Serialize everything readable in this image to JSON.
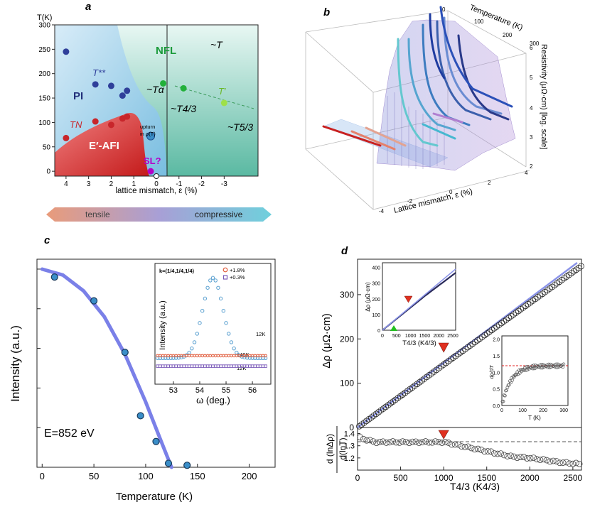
{
  "panel_labels": {
    "a": "a",
    "b": "b",
    "c": "c",
    "d": "d"
  },
  "colors": {
    "panel_a_blue": "#2f3f9a",
    "panel_a_red": "#c8262b",
    "panel_a_green": "#1a9a3a",
    "sl_purple": "#b400c8",
    "dashed_green": "#3a9a5a",
    "fit_line": "#7a80e8",
    "arrow_red": "#e03020",
    "point_blue": "#3a8ec8"
  },
  "panel_a": {
    "ylabel": "T(K)",
    "xlabel": "lattice mismatch, ε (%)",
    "region_labels": {
      "nfl": "NFL",
      "pi": "PI",
      "afi": "E′-AFI",
      "sl": "SL?",
      "tstarstar": "T**",
      "tn": "TN",
      "tprime": "T′",
      "upturn1": "upturn",
      "upturn2": "in ρ(T)"
    },
    "power_laws": {
      "t": "~T",
      "talpha": "~Tα",
      "t43": "~T4/3",
      "t53": "~T5/3"
    },
    "strain_bar": {
      "tensile": "tensile",
      "compressive": "compressive"
    },
    "chart_data": {
      "type": "scatter",
      "title": "",
      "xlabel": "lattice mismatch, ε (%)",
      "ylabel": "T(K)",
      "xlim": [
        4.5,
        -4.5
      ],
      "ylim": [
        -10,
        300
      ],
      "xticks": [
        "4",
        "3",
        "2",
        "1",
        "0",
        "-1",
        "-2",
        "-3"
      ],
      "yticks": [
        "0",
        "50",
        "100",
        "150",
        "200",
        "250",
        "300"
      ],
      "series": [
        {
          "name": "T**",
          "color": "#2f3f9a",
          "points": [
            [
              4.0,
              245
            ],
            [
              2.7,
              178
            ],
            [
              2.0,
              175
            ],
            [
              1.5,
              155
            ],
            [
              1.3,
              165
            ]
          ]
        },
        {
          "name": "TN",
          "color": "#c8262b",
          "points": [
            [
              4.0,
              68
            ],
            [
              2.7,
              102
            ],
            [
              2.0,
              95
            ],
            [
              1.5,
              108
            ],
            [
              1.3,
              112
            ]
          ]
        },
        {
          "name": "T′",
          "color": "#1a9a3a",
          "points": [
            [
              -0.3,
              180
            ],
            [
              -1.2,
              170
            ],
            [
              -3.0,
              140
            ]
          ]
        },
        {
          "name": "upturn",
          "color": "#3a8ec8",
          "points": [
            [
              0.25,
              72
            ]
          ]
        },
        {
          "name": "SL",
          "color": "#b400c8",
          "points": [
            [
              0.25,
              0
            ]
          ]
        }
      ]
    }
  },
  "panel_b": {
    "zlabel": "Resistivity (μΩ·cm) [log. scale]",
    "temp_label": "Temperature (K)",
    "mismatch_label": "Lattice mismatch, ε (%)",
    "chart_data": {
      "type": "surface3d",
      "temp_axis": {
        "label": "Temperature (K)",
        "ticks": [
          "0",
          "100",
          "200",
          "300"
        ]
      },
      "mismatch_axis": {
        "label": "Lattice mismatch, ε (%)",
        "ticks": [
          "-4",
          "-2",
          "0",
          "2",
          "4"
        ]
      },
      "resistivity_axis": {
        "label": "Resistivity (μΩ·cm) [log. scale]",
        "ticks": [
          "2",
          "3",
          "4",
          "5",
          "6"
        ]
      }
    }
  },
  "panel_c": {
    "ylabel": "Intensity (a.u.)",
    "xlabel": "Temperature (K)",
    "energy_label": "E=852 eV",
    "chart_data": {
      "type": "scatter",
      "title": "",
      "xlabel": "Temperature (K)",
      "ylabel": "Intensity (a.u.)",
      "xlim": [
        -5,
        225
      ],
      "ylim": [
        0,
        1.05
      ],
      "xticks": [
        "0",
        "50",
        "100",
        "150",
        "200"
      ],
      "series": [
        {
          "name": "data",
          "x": [
            12,
            50,
            80,
            95,
            110,
            122,
            140
          ],
          "y": [
            0.96,
            0.84,
            0.58,
            0.26,
            0.13,
            0.02,
            0.01
          ]
        }
      ],
      "fit": {
        "x": [
          0,
          20,
          40,
          60,
          80,
          100,
          115,
          125
        ],
        "y": [
          1.0,
          0.97,
          0.89,
          0.76,
          0.57,
          0.33,
          0.13,
          0.0
        ]
      }
    },
    "inset": {
      "kvector": "k=(1/4,1/4,1/4)",
      "legend": [
        "+1.8%",
        "+0.3%"
      ],
      "ylabel": "Intensity (a.u.)",
      "xlabel": "ω (deg.)",
      "curve_labels": [
        "12K",
        "140K",
        "12K"
      ],
      "chart_data": {
        "type": "scatter",
        "xlim": [
          52.3,
          56.7
        ],
        "xticks": [
          "53",
          "54",
          "55",
          "56"
        ],
        "series": [
          {
            "name": "+1.8% 12K",
            "peak_center": 54.5,
            "peak_height": 1.0,
            "peak_width": 0.55
          },
          {
            "name": "+1.8% 140K",
            "level": 0.06
          },
          {
            "name": "+0.3% 12K",
            "level": -0.07
          }
        ]
      }
    }
  },
  "panel_d": {
    "ylabel_top": "Δρ (μΩ·cm)",
    "ylabel_bottom_num": "d (lnΔρ)",
    "ylabel_bottom_den": "d(lnT)",
    "xlabel": "T4/3 (K4/3)",
    "chart_data": {
      "type": "scatter",
      "xlabel": "T4/3 (K4/3)",
      "ylabel": "Δρ (μΩ·cm)",
      "xlim": [
        0,
        2600
      ],
      "ylim": [
        0,
        380
      ],
      "xticks": [
        "0",
        "500",
        "1000",
        "1500",
        "2000",
        "2500"
      ],
      "yticks": [
        "0",
        "100",
        "200",
        "300"
      ],
      "data_slope": 0.142,
      "fit_line": [
        [
          0,
          0
        ],
        [
          2550,
          372
        ]
      ],
      "marker_x": 1000
    },
    "bottom_chart": {
      "ylim": [
        1.1,
        1.45
      ],
      "yticks": [
        "1.2",
        "1.3",
        "1.4"
      ],
      "reference": 1.333,
      "points": [
        [
          50,
          1.36
        ],
        [
          200,
          1.33
        ],
        [
          400,
          1.33
        ],
        [
          600,
          1.33
        ],
        [
          800,
          1.33
        ],
        [
          1000,
          1.33
        ],
        [
          1200,
          1.3
        ],
        [
          1400,
          1.27
        ],
        [
          1600,
          1.24
        ],
        [
          1800,
          1.21
        ],
        [
          2000,
          1.2
        ],
        [
          2200,
          1.18
        ],
        [
          2400,
          1.16
        ],
        [
          2600,
          1.15
        ]
      ]
    },
    "inset1": {
      "ylabel": "Δρ (μΩ·cm)",
      "xlabel": "T4/3 (K4/3)",
      "xticks": [
        "0",
        "500",
        "1000",
        "1500",
        "2000",
        "2500"
      ],
      "yticks": [
        "0",
        "100",
        "200",
        "300",
        "400"
      ]
    },
    "inset2": {
      "ylabel": "dρ/dT",
      "xlabel": "T (K)",
      "xticks": [
        "0",
        "100",
        "200",
        "300"
      ],
      "yticks": [
        "0.0",
        "0.5",
        "1.0",
        "1.5",
        "2.0"
      ],
      "reference": 1.2
    }
  }
}
